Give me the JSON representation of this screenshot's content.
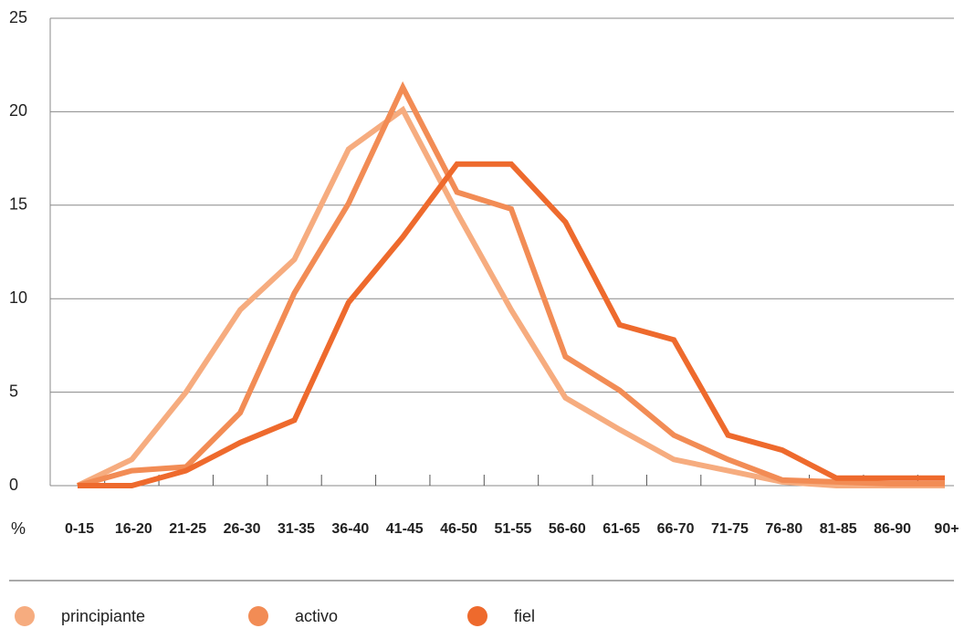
{
  "chart_data": {
    "type": "line",
    "y_unit_label": "%",
    "categories": [
      "0-15",
      "16-20",
      "21-25",
      "26-30",
      "31-35",
      "36-40",
      "41-45",
      "46-50",
      "51-55",
      "56-60",
      "61-65",
      "66-70",
      "71-75",
      "76-80",
      "81-85",
      "86-90",
      "90+"
    ],
    "series": [
      {
        "name": "principiante",
        "color": "#f6ac7f",
        "values": [
          0,
          1.4,
          5,
          9.4,
          12.1,
          18,
          20.1,
          14.6,
          9.4,
          4.7,
          3,
          1.4,
          0.8,
          0.2,
          0,
          0,
          0
        ]
      },
      {
        "name": "activo",
        "color": "#f28c55",
        "values": [
          0,
          0.8,
          1,
          3.9,
          10.3,
          15.1,
          21.3,
          15.7,
          14.8,
          6.9,
          5.1,
          2.7,
          1.4,
          0.3,
          0.2,
          0.1,
          0.1
        ]
      },
      {
        "name": "fiel",
        "color": "#ee6a2d",
        "values": [
          0,
          0,
          0.8,
          2.3,
          3.5,
          9.8,
          13.3,
          17.2,
          17.2,
          14.1,
          8.6,
          7.8,
          2.7,
          1.9,
          0.4,
          0.4,
          0.4
        ]
      }
    ],
    "ylim": [
      0,
      25
    ],
    "yticks": [
      0,
      5,
      10,
      15,
      20,
      25
    ],
    "grid": true,
    "legend": "bottom"
  }
}
